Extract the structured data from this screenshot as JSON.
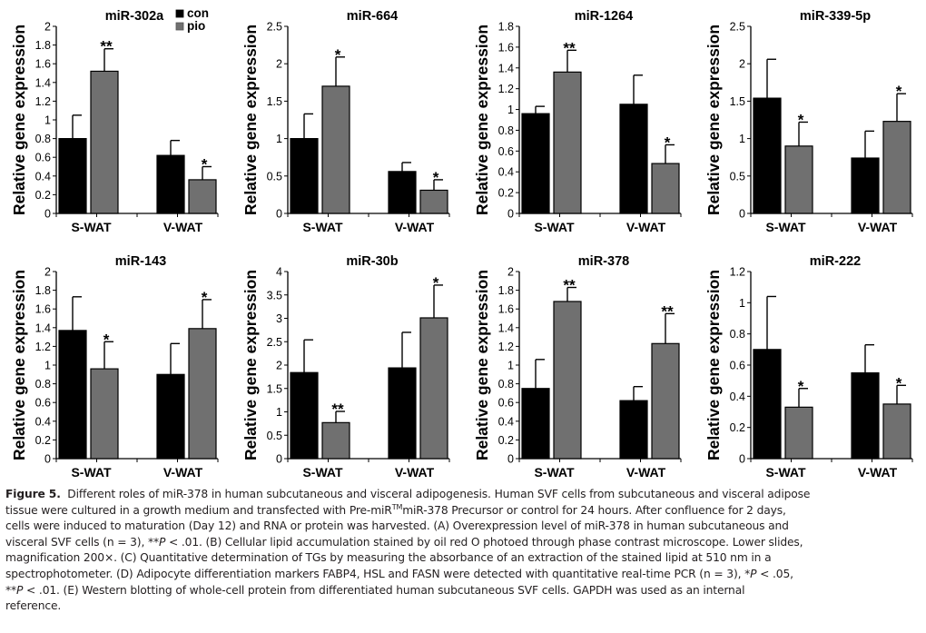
{
  "colors": {
    "con": "#000000",
    "pio": "#707070",
    "axis": "#000000"
  },
  "legend": [
    {
      "label": "con",
      "color": "#000000"
    },
    {
      "label": "pio",
      "color": "#707070"
    }
  ],
  "chart_data": [
    {
      "type": "bar",
      "title": "miR-302a",
      "ylabel": "Relative gene expression",
      "categories": [
        "S-WAT",
        "V-WAT"
      ],
      "ylim": [
        0,
        2
      ],
      "yticks": [
        "0",
        "0.2",
        "0.4",
        "0.6",
        "0.8",
        "1",
        "1.2",
        "1.4",
        "1.6",
        "1.8",
        "2"
      ],
      "series": [
        {
          "name": "con",
          "values": [
            0.8,
            0.62
          ],
          "errors": [
            0.25,
            0.16
          ],
          "sig": [
            "",
            ""
          ]
        },
        {
          "name": "pio",
          "values": [
            1.52,
            0.36
          ],
          "errors": [
            0.24,
            0.14
          ],
          "sig": [
            "**",
            "*"
          ]
        }
      ],
      "legend": "top-right"
    },
    {
      "type": "bar",
      "title": "miR-664",
      "ylabel": "Relative gene expression",
      "categories": [
        "S-WAT",
        "V-WAT"
      ],
      "ylim": [
        0,
        2.5
      ],
      "yticks": [
        "0",
        "0.5",
        "1",
        "1.5",
        "2",
        "2.5"
      ],
      "series": [
        {
          "name": "con",
          "values": [
            1.0,
            0.56
          ],
          "errors": [
            0.33,
            0.12
          ],
          "sig": [
            "",
            ""
          ]
        },
        {
          "name": "pio",
          "values": [
            1.7,
            0.31
          ],
          "errors": [
            0.39,
            0.14
          ],
          "sig": [
            "*",
            "*"
          ]
        }
      ]
    },
    {
      "type": "bar",
      "title": "miR-1264",
      "ylabel": "Relative gene expression",
      "categories": [
        "S-WAT",
        "V-WAT"
      ],
      "ylim": [
        0,
        1.8
      ],
      "yticks": [
        "0",
        "0.2",
        "0.4",
        "0.6",
        "0.8",
        "1",
        "1.2",
        "1.4",
        "1.6",
        "1.8"
      ],
      "series": [
        {
          "name": "con",
          "values": [
            0.96,
            1.05
          ],
          "errors": [
            0.07,
            0.28
          ],
          "sig": [
            "",
            ""
          ]
        },
        {
          "name": "pio",
          "values": [
            1.36,
            0.48
          ],
          "errors": [
            0.21,
            0.18
          ],
          "sig": [
            "**",
            "*"
          ]
        }
      ]
    },
    {
      "type": "bar",
      "title": "miR-339-5p",
      "ylabel": "Relative gene expression",
      "categories": [
        "S-WAT",
        "V-WAT"
      ],
      "ylim": [
        0,
        2.5
      ],
      "yticks": [
        "0",
        "0.5",
        "1",
        "1.5",
        "2",
        "2.5"
      ],
      "series": [
        {
          "name": "con",
          "values": [
            1.54,
            0.74
          ],
          "errors": [
            0.52,
            0.36
          ],
          "sig": [
            "",
            ""
          ]
        },
        {
          "name": "pio",
          "values": [
            0.9,
            1.23
          ],
          "errors": [
            0.32,
            0.37
          ],
          "sig": [
            "*",
            "*"
          ]
        }
      ]
    },
    {
      "type": "bar",
      "title": "miR-143",
      "ylabel": "Relative gene expression",
      "categories": [
        "S-WAT",
        "V-WAT"
      ],
      "ylim": [
        0,
        2
      ],
      "yticks": [
        "0",
        "0.2",
        "0.4",
        "0.6",
        "0.8",
        "1",
        "1.2",
        "1.4",
        "1.6",
        "1.8",
        "2"
      ],
      "series": [
        {
          "name": "con",
          "values": [
            1.37,
            0.9
          ],
          "errors": [
            0.36,
            0.33
          ],
          "sig": [
            "",
            ""
          ]
        },
        {
          "name": "pio",
          "values": [
            0.96,
            1.39
          ],
          "errors": [
            0.29,
            0.31
          ],
          "sig": [
            "*",
            "*"
          ]
        }
      ]
    },
    {
      "type": "bar",
      "title": "miR-30b",
      "ylabel": "Relative gene expression",
      "categories": [
        "S-WAT",
        "V-WAT"
      ],
      "ylim": [
        0,
        4
      ],
      "yticks": [
        "0",
        "0.5",
        "1",
        "1.5",
        "2",
        "2.5",
        "3",
        "3.5",
        "4"
      ],
      "series": [
        {
          "name": "con",
          "values": [
            1.84,
            1.94
          ],
          "errors": [
            0.7,
            0.76
          ],
          "sig": [
            "",
            ""
          ]
        },
        {
          "name": "pio",
          "values": [
            0.77,
            3.01
          ],
          "errors": [
            0.24,
            0.7
          ],
          "sig": [
            "**",
            "*"
          ]
        }
      ]
    },
    {
      "type": "bar",
      "title": "miR-378",
      "ylabel": "Relative gene expression",
      "categories": [
        "S-WAT",
        "V-WAT"
      ],
      "ylim": [
        0,
        2
      ],
      "yticks": [
        "0",
        "0.2",
        "0.4",
        "0.6",
        "0.8",
        "1",
        "1.2",
        "1.4",
        "1.6",
        "1.8",
        "2"
      ],
      "series": [
        {
          "name": "con",
          "values": [
            0.75,
            0.62
          ],
          "errors": [
            0.31,
            0.15
          ],
          "sig": [
            "",
            ""
          ]
        },
        {
          "name": "pio",
          "values": [
            1.68,
            1.23
          ],
          "errors": [
            0.15,
            0.32
          ],
          "sig": [
            "**",
            "**"
          ]
        }
      ]
    },
    {
      "type": "bar",
      "title": "miR-222",
      "ylabel": "Relative gene expression",
      "categories": [
        "S-WAT",
        "V-WAT"
      ],
      "ylim": [
        0,
        1.2
      ],
      "yticks": [
        "0",
        "0.2",
        "0.4",
        "0.6",
        "0.8",
        "1",
        "1.2"
      ],
      "series": [
        {
          "name": "con",
          "values": [
            0.7,
            0.55
          ],
          "errors": [
            0.34,
            0.18
          ],
          "sig": [
            "",
            ""
          ]
        },
        {
          "name": "pio",
          "values": [
            0.33,
            0.35
          ],
          "errors": [
            0.12,
            0.12
          ],
          "sig": [
            "*",
            "*"
          ]
        }
      ]
    }
  ],
  "caption": {
    "label": "Figure 5.",
    "lines": [
      [
        "Different roles of miR-378 in human subcutaneous and visceral adipogenesis. Human SVF cells from subcutaneous and visceral adipose"
      ],
      [
        "tissue were cultured in a growth medium and transfected with Pre-miR",
        "TM",
        "miR-378 Precursor or control for 24 hours. After confluence for 2 days,"
      ],
      [
        "cells were induced to maturation (Day 12) and RNA or protein was harvested. (A) Overexpression level of miR-378 in human subcutaneous and"
      ],
      [
        "visceral SVF cells (n = 3), **",
        "P",
        " < .01. (B) Cellular lipid accumulation stained by oil red O photoed through phase contrast microscope. Lower slides,"
      ],
      [
        "magnification 200×. (C) Quantitative determination of TGs by measuring the absorbance of an extraction of the stained lipid at 510 nm in a"
      ],
      [
        "spectrophotometer. (D) Adipocyte differentiation markers FABP4, HSL and FASN were detected with quantitative real-time PCR (n = 3), *",
        "P",
        " < .05,"
      ],
      [
        "**",
        "P",
        " < .01. (E) Western blotting of whole-cell protein from differentiated human subcutaneous SVF cells. GAPDH was used as an internal"
      ],
      [
        "reference."
      ]
    ]
  }
}
